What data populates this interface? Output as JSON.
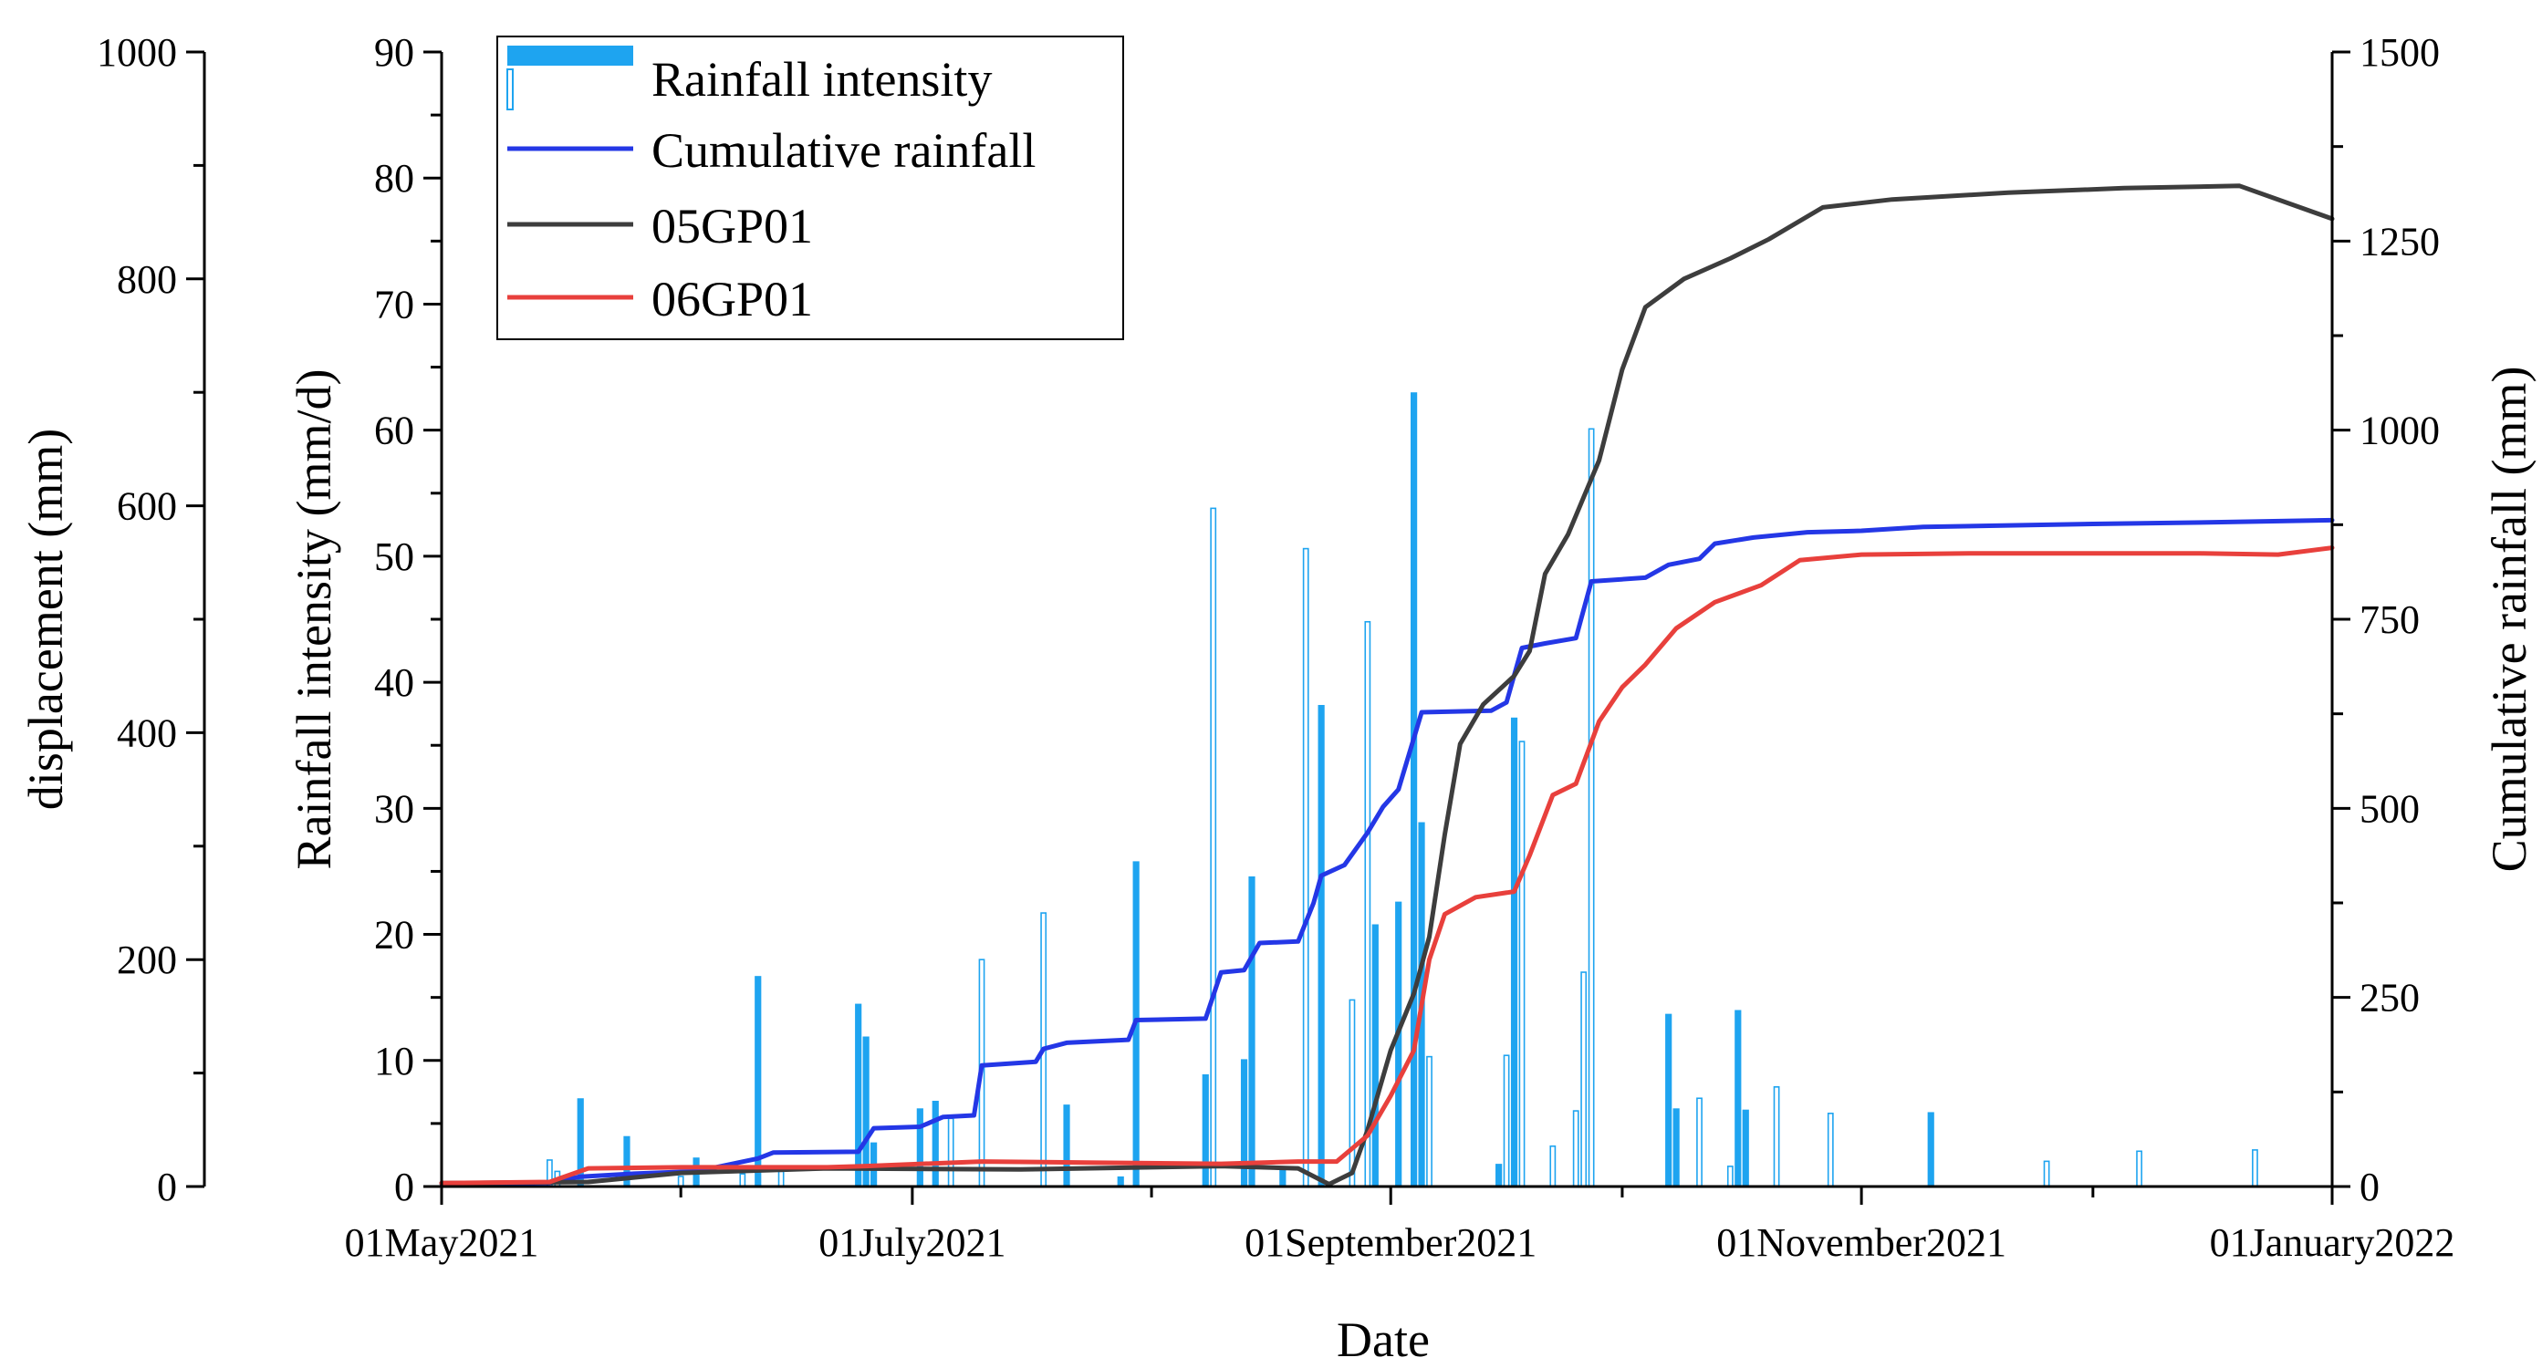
{
  "chart_data": {
    "type": "bar+line",
    "xlabel": "Date",
    "x_ticks": [
      "01May2021",
      "01July2021",
      "01September2021",
      "01November2021",
      "01January2022"
    ],
    "x_tick_dates": [
      "2021-05-01",
      "2021-07-01",
      "2021-09-01",
      "2021-11-01",
      "2022-01-01"
    ],
    "x_range": [
      "2021-05-01",
      "2022-01-01"
    ],
    "axes": {
      "displacement": {
        "label": "displacement (mm)",
        "range": [
          0,
          1000
        ],
        "ticks": [
          0,
          200,
          400,
          600,
          800,
          1000
        ]
      },
      "rainfall_intensity": {
        "label": "Rainfall intensity (mm/d)",
        "range": [
          0,
          90
        ],
        "ticks": [
          0,
          10,
          20,
          30,
          40,
          50,
          60,
          70,
          80,
          90
        ]
      },
      "cumulative_rainfall": {
        "label": "Cumulative rainfall (mm)",
        "range": [
          0,
          1500
        ],
        "ticks": [
          0,
          250,
          500,
          750,
          1000,
          1250,
          1500
        ]
      }
    },
    "legend": {
      "placement": "top-left",
      "entries": [
        "Rainfall intensity",
        "Cumulative rainfall",
        "05GP01",
        "06GP01"
      ]
    },
    "colors": {
      "bars": "#1ea4f0",
      "cumulative": "#2437e6",
      "gp05": "#3d3d3d",
      "gp06": "#e8403c"
    },
    "rainfall_bars": [
      {
        "date": "2021-05-15",
        "value": 2.1,
        "style": "outline"
      },
      {
        "date": "2021-05-16",
        "value": 1.2,
        "style": "outline"
      },
      {
        "date": "2021-05-19",
        "value": 7.0,
        "style": "filled"
      },
      {
        "date": "2021-05-25",
        "value": 4.0,
        "style": "filled"
      },
      {
        "date": "2021-06-01",
        "value": 0.8,
        "style": "outline"
      },
      {
        "date": "2021-06-03",
        "value": 2.3,
        "style": "filled"
      },
      {
        "date": "2021-06-09",
        "value": 1.0,
        "style": "outline"
      },
      {
        "date": "2021-06-11",
        "value": 16.7,
        "style": "filled"
      },
      {
        "date": "2021-06-14",
        "value": 1.2,
        "style": "outline"
      },
      {
        "date": "2021-06-24",
        "value": 14.5,
        "style": "filled"
      },
      {
        "date": "2021-06-25",
        "value": 11.9,
        "style": "filled"
      },
      {
        "date": "2021-06-26",
        "value": 3.5,
        "style": "filled"
      },
      {
        "date": "2021-07-02",
        "value": 6.2,
        "style": "filled"
      },
      {
        "date": "2021-07-04",
        "value": 6.8,
        "style": "filled"
      },
      {
        "date": "2021-07-06",
        "value": 5.4,
        "style": "outline"
      },
      {
        "date": "2021-07-10",
        "value": 18.0,
        "style": "outline"
      },
      {
        "date": "2021-07-18",
        "value": 21.7,
        "style": "outline"
      },
      {
        "date": "2021-07-21",
        "value": 6.5,
        "style": "filled"
      },
      {
        "date": "2021-07-28",
        "value": 0.8,
        "style": "filled"
      },
      {
        "date": "2021-07-30",
        "value": 25.8,
        "style": "filled"
      },
      {
        "date": "2021-08-08",
        "value": 8.9,
        "style": "filled"
      },
      {
        "date": "2021-08-09",
        "value": 53.8,
        "style": "outline"
      },
      {
        "date": "2021-08-13",
        "value": 10.1,
        "style": "filled"
      },
      {
        "date": "2021-08-14",
        "value": 24.6,
        "style": "filled"
      },
      {
        "date": "2021-08-18",
        "value": 1.5,
        "style": "filled"
      },
      {
        "date": "2021-08-21",
        "value": 50.6,
        "style": "outline"
      },
      {
        "date": "2021-08-23",
        "value": 38.2,
        "style": "filled"
      },
      {
        "date": "2021-08-27",
        "value": 14.8,
        "style": "outline"
      },
      {
        "date": "2021-08-29",
        "value": 44.8,
        "style": "outline"
      },
      {
        "date": "2021-08-30",
        "value": 20.8,
        "style": "filled"
      },
      {
        "date": "2021-09-02",
        "value": 22.6,
        "style": "filled"
      },
      {
        "date": "2021-09-04",
        "value": 63.0,
        "style": "filled"
      },
      {
        "date": "2021-09-05",
        "value": 28.9,
        "style": "filled"
      },
      {
        "date": "2021-09-06",
        "value": 10.3,
        "style": "outline"
      },
      {
        "date": "2021-09-15",
        "value": 1.8,
        "style": "filled"
      },
      {
        "date": "2021-09-16",
        "value": 10.4,
        "style": "outline"
      },
      {
        "date": "2021-09-17",
        "value": 37.2,
        "style": "filled"
      },
      {
        "date": "2021-09-18",
        "value": 35.3,
        "style": "outline"
      },
      {
        "date": "2021-09-22",
        "value": 3.2,
        "style": "outline"
      },
      {
        "date": "2021-09-25",
        "value": 6.0,
        "style": "outline"
      },
      {
        "date": "2021-09-26",
        "value": 17.0,
        "style": "outline"
      },
      {
        "date": "2021-09-27",
        "value": 60.1,
        "style": "outline"
      },
      {
        "date": "2021-10-07",
        "value": 13.7,
        "style": "filled"
      },
      {
        "date": "2021-10-08",
        "value": 6.2,
        "style": "filled"
      },
      {
        "date": "2021-10-11",
        "value": 7.0,
        "style": "outline"
      },
      {
        "date": "2021-10-15",
        "value": 1.6,
        "style": "outline"
      },
      {
        "date": "2021-10-16",
        "value": 14.0,
        "style": "filled"
      },
      {
        "date": "2021-10-17",
        "value": 6.1,
        "style": "filled"
      },
      {
        "date": "2021-10-21",
        "value": 7.9,
        "style": "outline"
      },
      {
        "date": "2021-10-28",
        "value": 5.8,
        "style": "outline"
      },
      {
        "date": "2021-11-10",
        "value": 5.9,
        "style": "filled"
      },
      {
        "date": "2021-11-25",
        "value": 2.0,
        "style": "outline"
      },
      {
        "date": "2021-12-07",
        "value": 2.8,
        "style": "outline"
      },
      {
        "date": "2021-12-22",
        "value": 2.9,
        "style": "outline"
      }
    ],
    "series": [
      {
        "name": "Cumulative rainfall",
        "axis": "cumulative_rainfall",
        "points": [
          [
            "2021-05-01",
            4
          ],
          [
            "2021-05-15",
            5
          ],
          [
            "2021-05-19",
            13
          ],
          [
            "2021-05-26",
            17
          ],
          [
            "2021-06-03",
            20
          ],
          [
            "2021-06-11",
            37
          ],
          [
            "2021-06-13",
            45
          ],
          [
            "2021-06-24",
            46
          ],
          [
            "2021-06-26",
            77
          ],
          [
            "2021-07-02",
            79
          ],
          [
            "2021-07-05",
            92
          ],
          [
            "2021-07-09",
            94
          ],
          [
            "2021-07-10",
            160
          ],
          [
            "2021-07-17",
            165
          ],
          [
            "2021-07-18",
            182
          ],
          [
            "2021-07-21",
            190
          ],
          [
            "2021-07-29",
            194
          ],
          [
            "2021-07-30",
            220
          ],
          [
            "2021-08-08",
            222
          ],
          [
            "2021-08-10",
            283
          ],
          [
            "2021-08-13",
            286
          ],
          [
            "2021-08-15",
            322
          ],
          [
            "2021-08-20",
            324
          ],
          [
            "2021-08-22",
            375
          ],
          [
            "2021-08-23",
            411
          ],
          [
            "2021-08-26",
            425
          ],
          [
            "2021-08-29",
            468
          ],
          [
            "2021-08-31",
            502
          ],
          [
            "2021-09-02",
            525
          ],
          [
            "2021-09-05",
            627
          ],
          [
            "2021-09-14",
            629
          ],
          [
            "2021-09-16",
            640
          ],
          [
            "2021-09-18",
            712
          ],
          [
            "2021-09-21",
            718
          ],
          [
            "2021-09-25",
            725
          ],
          [
            "2021-09-27",
            800
          ],
          [
            "2021-10-04",
            805
          ],
          [
            "2021-10-07",
            822
          ],
          [
            "2021-10-11",
            830
          ],
          [
            "2021-10-13",
            850
          ],
          [
            "2021-10-18",
            858
          ],
          [
            "2021-10-25",
            865
          ],
          [
            "2021-11-01",
            867
          ],
          [
            "2021-11-09",
            872
          ],
          [
            "2021-12-01",
            876
          ],
          [
            "2021-12-16",
            878
          ],
          [
            "2022-01-01",
            881
          ]
        ]
      },
      {
        "name": "05GP01",
        "axis": "displacement",
        "points": [
          [
            "2021-05-01",
            3
          ],
          [
            "2021-05-20",
            4
          ],
          [
            "2021-06-01",
            12
          ],
          [
            "2021-06-20",
            16
          ],
          [
            "2021-07-15",
            15
          ],
          [
            "2021-08-10",
            18
          ],
          [
            "2021-08-20",
            16
          ],
          [
            "2021-08-24",
            2
          ],
          [
            "2021-08-27",
            12
          ],
          [
            "2021-08-29",
            50
          ],
          [
            "2021-09-01",
            120
          ],
          [
            "2021-09-04",
            170
          ],
          [
            "2021-09-06",
            220
          ],
          [
            "2021-09-08",
            310
          ],
          [
            "2021-09-10",
            390
          ],
          [
            "2021-09-13",
            425
          ],
          [
            "2021-09-17",
            450
          ],
          [
            "2021-09-19",
            472
          ],
          [
            "2021-09-21",
            540
          ],
          [
            "2021-09-24",
            575
          ],
          [
            "2021-09-28",
            640
          ],
          [
            "2021-10-01",
            720
          ],
          [
            "2021-10-04",
            775
          ],
          [
            "2021-10-09",
            800
          ],
          [
            "2021-10-15",
            818
          ],
          [
            "2021-10-20",
            835
          ],
          [
            "2021-10-27",
            863
          ],
          [
            "2021-11-05",
            870
          ],
          [
            "2021-11-20",
            876
          ],
          [
            "2021-12-05",
            880
          ],
          [
            "2021-12-20",
            882
          ],
          [
            "2022-01-01",
            853
          ]
        ]
      },
      {
        "name": "06GP01",
        "axis": "displacement",
        "points": [
          [
            "2021-05-01",
            3
          ],
          [
            "2021-05-15",
            4
          ],
          [
            "2021-05-20",
            16
          ],
          [
            "2021-06-01",
            17
          ],
          [
            "2021-06-20",
            17
          ],
          [
            "2021-06-25",
            18
          ],
          [
            "2021-07-10",
            22
          ],
          [
            "2021-07-25",
            21
          ],
          [
            "2021-08-10",
            20
          ],
          [
            "2021-08-20",
            22
          ],
          [
            "2021-08-25",
            22
          ],
          [
            "2021-08-29",
            45
          ],
          [
            "2021-09-01",
            80
          ],
          [
            "2021-09-04",
            120
          ],
          [
            "2021-09-06",
            200
          ],
          [
            "2021-09-08",
            240
          ],
          [
            "2021-09-12",
            255
          ],
          [
            "2021-09-17",
            260
          ],
          [
            "2021-09-19",
            292
          ],
          [
            "2021-09-22",
            345
          ],
          [
            "2021-09-25",
            355
          ],
          [
            "2021-09-28",
            410
          ],
          [
            "2021-10-01",
            440
          ],
          [
            "2021-10-04",
            460
          ],
          [
            "2021-10-08",
            492
          ],
          [
            "2021-10-13",
            515
          ],
          [
            "2021-10-19",
            530
          ],
          [
            "2021-10-24",
            552
          ],
          [
            "2021-11-01",
            557
          ],
          [
            "2021-11-15",
            558
          ],
          [
            "2021-12-15",
            558
          ],
          [
            "2021-12-25",
            557
          ],
          [
            "2022-01-01",
            563
          ]
        ]
      }
    ]
  }
}
